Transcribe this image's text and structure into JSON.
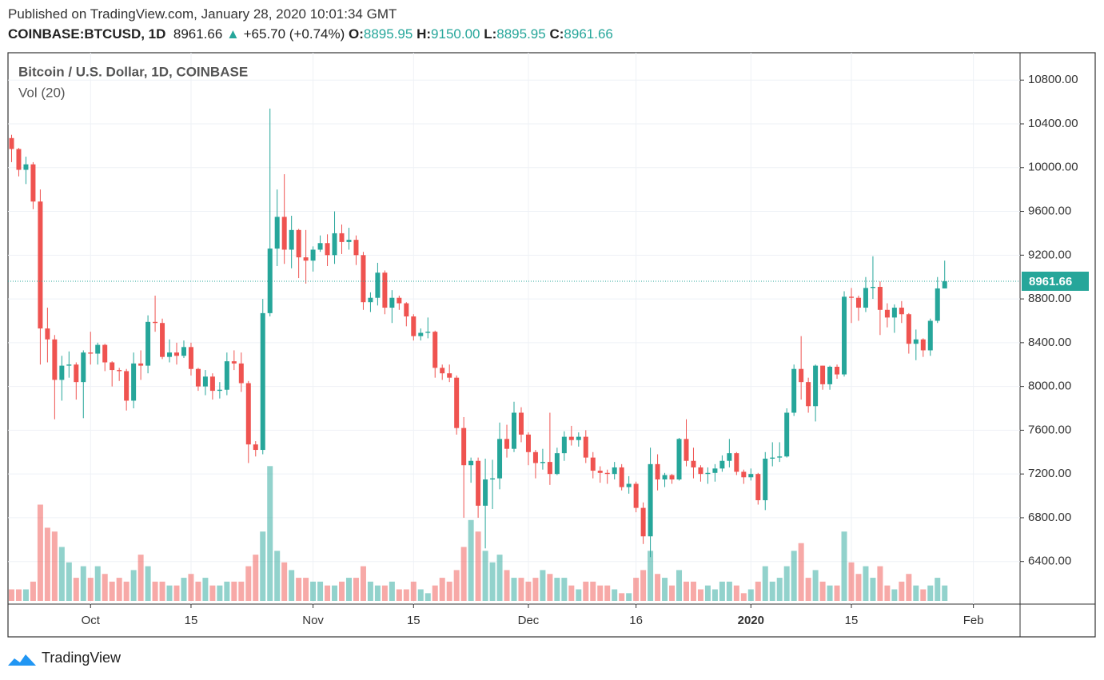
{
  "header": {
    "published": "Published on TradingView.com, January 28, 2020 10:01:34 GMT",
    "symbol": "COINBASE:BTCUSD, 1D",
    "price": "8961.66",
    "arrow": "▲",
    "change": "+65.70 (+0.74%)",
    "ohlc": [
      {
        "label": "O:",
        "value": "8895.95"
      },
      {
        "label": "H:",
        "value": "9150.00"
      },
      {
        "label": "L:",
        "value": "8895.95"
      },
      {
        "label": "C:",
        "value": "8961.66"
      }
    ]
  },
  "chart_data": {
    "type": "candlestick",
    "title": "Bitcoin / U.S. Dollar, 1D, COINBASE",
    "volume_label": "Vol (20)",
    "x": [
      "2019-09-20",
      "2019-09-21",
      "2019-09-22",
      "2019-09-23",
      "2019-09-24",
      "2019-09-25",
      "2019-09-26",
      "2019-09-27",
      "2019-09-28",
      "2019-09-29",
      "2019-09-30",
      "2019-10-01",
      "2019-10-02",
      "2019-10-03",
      "2019-10-04",
      "2019-10-05",
      "2019-10-06",
      "2019-10-07",
      "2019-10-08",
      "2019-10-09",
      "2019-10-10",
      "2019-10-11",
      "2019-10-12",
      "2019-10-13",
      "2019-10-14",
      "2019-10-15",
      "2019-10-16",
      "2019-10-17",
      "2019-10-18",
      "2019-10-19",
      "2019-10-20",
      "2019-10-21",
      "2019-10-22",
      "2019-10-23",
      "2019-10-24",
      "2019-10-25",
      "2019-10-26",
      "2019-10-27",
      "2019-10-28",
      "2019-10-29",
      "2019-10-30",
      "2019-10-31",
      "2019-11-01",
      "2019-11-02",
      "2019-11-03",
      "2019-11-04",
      "2019-11-05",
      "2019-11-06",
      "2019-11-07",
      "2019-11-08",
      "2019-11-09",
      "2019-11-10",
      "2019-11-11",
      "2019-11-12",
      "2019-11-13",
      "2019-11-14",
      "2019-11-15",
      "2019-11-16",
      "2019-11-17",
      "2019-11-18",
      "2019-11-19",
      "2019-11-20",
      "2019-11-21",
      "2019-11-22",
      "2019-11-23",
      "2019-11-24",
      "2019-11-25",
      "2019-11-26",
      "2019-11-27",
      "2019-11-28",
      "2019-11-29",
      "2019-11-30",
      "2019-12-01",
      "2019-12-02",
      "2019-12-03",
      "2019-12-04",
      "2019-12-05",
      "2019-12-06",
      "2019-12-07",
      "2019-12-08",
      "2019-12-09",
      "2019-12-10",
      "2019-12-11",
      "2019-12-12",
      "2019-12-13",
      "2019-12-14",
      "2019-12-15",
      "2019-12-16",
      "2019-12-17",
      "2019-12-18",
      "2019-12-19",
      "2019-12-20",
      "2019-12-21",
      "2019-12-22",
      "2019-12-23",
      "2019-12-24",
      "2019-12-25",
      "2019-12-26",
      "2019-12-27",
      "2019-12-28",
      "2019-12-29",
      "2019-12-30",
      "2019-12-31",
      "2020-01-01",
      "2020-01-02",
      "2020-01-03",
      "2020-01-04",
      "2020-01-05",
      "2020-01-06",
      "2020-01-07",
      "2020-01-08",
      "2020-01-09",
      "2020-01-10",
      "2020-01-11",
      "2020-01-12",
      "2020-01-13",
      "2020-01-14",
      "2020-01-15",
      "2020-01-16",
      "2020-01-17",
      "2020-01-18",
      "2020-01-19",
      "2020-01-20",
      "2020-01-21",
      "2020-01-22",
      "2020-01-23",
      "2020-01-24",
      "2020-01-25",
      "2020-01-26",
      "2020-01-27",
      "2020-01-28"
    ],
    "open": [
      10270,
      10170,
      9980,
      10030,
      9690,
      8530,
      8430,
      8060,
      8190,
      8200,
      8040,
      8310,
      8300,
      8380,
      8220,
      8150,
      8140,
      7870,
      8210,
      8190,
      8590,
      8580,
      8270,
      8310,
      8280,
      8360,
      8160,
      8000,
      8090,
      7960,
      7970,
      8230,
      8210,
      8030,
      7470,
      7420,
      8670,
      9260,
      9550,
      9250,
      9430,
      9180,
      9150,
      9250,
      9310,
      9200,
      9400,
      9320,
      9340,
      9200,
      8770,
      8810,
      9040,
      8720,
      8810,
      8760,
      8640,
      8460,
      8490,
      8500,
      8170,
      8120,
      8080,
      7620,
      7280,
      7320,
      6910,
      7150,
      7160,
      7520,
      7430,
      7760,
      7560,
      7400,
      7300,
      7310,
      7200,
      7390,
      7540,
      7510,
      7540,
      7350,
      7230,
      7210,
      7200,
      7260,
      7080,
      7110,
      6890,
      6630,
      7290,
      7150,
      7190,
      7150,
      7520,
      7320,
      7260,
      7200,
      7210,
      7250,
      7320,
      7390,
      7220,
      7170,
      7200,
      6960,
      7340,
      7350,
      7360,
      7760,
      8160,
      8040,
      7820,
      8190,
      8020,
      8180,
      8110,
      8820,
      8810,
      8720,
      8900,
      8910,
      8700,
      8630,
      8720,
      8660,
      8390,
      8430,
      8330,
      8600,
      8895.95
    ],
    "high": [
      10300,
      10180,
      10100,
      10050,
      9800,
      8720,
      8470,
      8280,
      8320,
      8220,
      8330,
      8500,
      8400,
      8390,
      8230,
      8170,
      8160,
      8310,
      8330,
      8650,
      8830,
      8620,
      8430,
      8400,
      8420,
      8400,
      8170,
      8150,
      8120,
      8040,
      8310,
      8330,
      8310,
      8050,
      7500,
      8800,
      10540,
      9800,
      9940,
      9560,
      9440,
      9430,
      9280,
      9380,
      9390,
      9600,
      9480,
      9450,
      9380,
      9230,
      8860,
      9130,
      9060,
      8880,
      8830,
      8770,
      8660,
      8530,
      8630,
      8510,
      8200,
      8200,
      8100,
      7720,
      7350,
      7350,
      7340,
      7330,
      7670,
      7650,
      7860,
      7810,
      7580,
      7420,
      7430,
      7760,
      7440,
      7590,
      7640,
      7580,
      7600,
      7400,
      7270,
      7240,
      7310,
      7290,
      7180,
      7130,
      6940,
      7440,
      7380,
      7210,
      7200,
      7530,
      7700,
      7440,
      7280,
      7260,
      7290,
      7370,
      7520,
      7400,
      7240,
      7250,
      7210,
      7400,
      7490,
      7490,
      7800,
      8200,
      8460,
      8080,
      8200,
      8190,
      8190,
      8200,
      8870,
      8900,
      8830,
      9000,
      9190,
      8960,
      8760,
      8750,
      8780,
      8670,
      8520,
      8440,
      8620,
      9000,
      9150
    ],
    "low": [
      10050,
      9920,
      9850,
      9620,
      8200,
      8220,
      7700,
      7870,
      8080,
      7880,
      7710,
      8200,
      8200,
      8140,
      8000,
      8050,
      7780,
      7800,
      8060,
      8120,
      8500,
      8250,
      8220,
      8200,
      8260,
      8100,
      7960,
      7920,
      7880,
      7890,
      7920,
      8150,
      7950,
      7300,
      7360,
      7380,
      8640,
      9100,
      9120,
      9080,
      8990,
      8940,
      9050,
      9230,
      9100,
      9120,
      9210,
      9250,
      9110,
      8700,
      8680,
      8740,
      8660,
      8580,
      8700,
      8550,
      8420,
      8420,
      8440,
      8080,
      8060,
      8040,
      7560,
      6800,
      7120,
      6800,
      6520,
      6880,
      7060,
      7350,
      7400,
      7490,
      7280,
      7160,
      7240,
      7100,
      7190,
      7320,
      7460,
      7450,
      7300,
      7160,
      7120,
      7110,
      7150,
      7050,
      7020,
      6850,
      6560,
      6440,
      7050,
      7080,
      7110,
      7140,
      7270,
      7160,
      7130,
      7110,
      7130,
      7220,
      7260,
      7190,
      7110,
      7140,
      6920,
      6870,
      7270,
      7310,
      7350,
      7730,
      7880,
      7760,
      7680,
      7970,
      7970,
      8070,
      8090,
      8580,
      8600,
      8680,
      8800,
      8470,
      8540,
      8490,
      8580,
      8300,
      8240,
      8270,
      8280,
      8580,
      8895.95
    ],
    "close": [
      10170,
      9980,
      10030,
      9690,
      8530,
      8430,
      8060,
      8190,
      8200,
      8040,
      8310,
      8300,
      8380,
      8220,
      8150,
      8140,
      7870,
      8210,
      8190,
      8590,
      8580,
      8270,
      8310,
      8280,
      8360,
      8160,
      8000,
      8090,
      7960,
      7970,
      8230,
      8210,
      8030,
      7470,
      7420,
      8670,
      9260,
      9550,
      9250,
      9430,
      9180,
      9150,
      9250,
      9310,
      9200,
      9400,
      9320,
      9340,
      9200,
      8770,
      8810,
      9040,
      8720,
      8810,
      8760,
      8640,
      8460,
      8490,
      8500,
      8170,
      8120,
      8080,
      7620,
      7280,
      7320,
      6910,
      7150,
      7160,
      7520,
      7430,
      7760,
      7560,
      7400,
      7300,
      7310,
      7200,
      7390,
      7540,
      7510,
      7540,
      7350,
      7230,
      7210,
      7200,
      7260,
      7080,
      7110,
      6890,
      6630,
      7290,
      7150,
      7190,
      7150,
      7520,
      7320,
      7260,
      7200,
      7210,
      7250,
      7320,
      7390,
      7220,
      7170,
      7200,
      6960,
      7340,
      7350,
      7360,
      7760,
      8160,
      8040,
      7820,
      8190,
      8020,
      8180,
      8110,
      8820,
      8810,
      8720,
      8900,
      8910,
      8700,
      8630,
      8720,
      8660,
      8390,
      8430,
      8330,
      8600,
      8895.95,
      8961.66
    ],
    "volume": [
      3,
      3,
      3,
      5,
      25,
      19,
      18,
      14,
      10,
      6,
      9,
      6,
      9,
      7,
      5,
      6,
      5,
      8,
      12,
      9,
      5,
      5,
      4,
      4,
      6,
      7,
      5,
      6,
      4,
      4,
      5,
      5,
      5,
      9,
      12,
      18,
      35,
      13,
      10,
      8,
      6,
      6,
      5,
      5,
      4,
      4,
      5,
      6,
      6,
      9,
      5,
      4,
      4,
      5,
      3,
      3,
      5,
      3,
      2,
      4,
      6,
      5,
      8,
      14,
      21,
      18,
      13,
      10,
      12,
      8,
      6,
      6,
      5,
      6,
      8,
      7,
      6,
      6,
      4,
      3,
      5,
      5,
      4,
      4,
      3,
      2,
      2,
      6,
      8,
      13,
      7,
      6,
      4,
      8,
      5,
      5,
      3,
      4,
      3,
      5,
      5,
      4,
      2,
      3,
      5,
      9,
      5,
      6,
      9,
      13,
      15,
      6,
      8,
      5,
      4,
      4,
      18,
      10,
      7,
      9,
      6,
      9,
      4,
      3,
      5,
      7,
      4,
      3,
      4,
      6,
      4
    ],
    "up_color": "#26a69a",
    "down_color": "#ef5350",
    "xlim": [
      "2019-09-20",
      "2020-02-08"
    ],
    "xticks": [
      {
        "value": "2019-10-01",
        "label": "Oct"
      },
      {
        "value": "2019-10-15",
        "label": "15"
      },
      {
        "value": "2019-11-01",
        "label": "Nov"
      },
      {
        "value": "2019-11-15",
        "label": "15"
      },
      {
        "value": "2019-12-01",
        "label": "Dec"
      },
      {
        "value": "2019-12-16",
        "label": "16"
      },
      {
        "value": "2020-01-01",
        "label": "2020"
      },
      {
        "value": "2020-01-15",
        "label": "15"
      },
      {
        "value": "2020-02-01",
        "label": "Feb"
      }
    ],
    "ylim": [
      6040,
      11050
    ],
    "yticks": [
      {
        "value": 6400,
        "label": "6400.00"
      },
      {
        "value": 6800,
        "label": "6800.00"
      },
      {
        "value": 7200,
        "label": "7200.00"
      },
      {
        "value": 7600,
        "label": "7600.00"
      },
      {
        "value": 8000,
        "label": "8000.00"
      },
      {
        "value": 8400,
        "label": "8400.00"
      },
      {
        "value": 8800,
        "label": "8800.00"
      },
      {
        "value": 9200,
        "label": "9200.00"
      },
      {
        "value": 9600,
        "label": "9600.00"
      },
      {
        "value": 10000,
        "label": "10000.00"
      },
      {
        "value": 10400,
        "label": "10400.00"
      },
      {
        "value": 10800,
        "label": "10800.00"
      }
    ],
    "vlim": [
      0,
      50
    ],
    "last_price": {
      "value": 8961.66,
      "label": "8961.66"
    },
    "grid": true
  },
  "footer": {
    "brand": "TradingView"
  }
}
